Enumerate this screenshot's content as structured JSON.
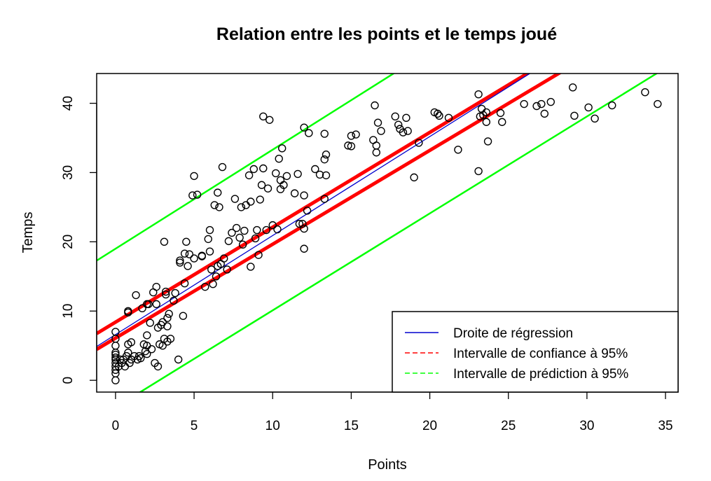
{
  "chart_data": {
    "type": "scatter",
    "title": "Relation entre les points et le temps joué",
    "xlabel": "Points",
    "ylabel": "Temps",
    "xlim": [
      -1.2,
      35.8
    ],
    "ylim": [
      -1.7,
      44.3
    ],
    "x_ticks": [
      0,
      5,
      10,
      15,
      20,
      25,
      30,
      35
    ],
    "y_ticks": [
      0,
      10,
      20,
      30,
      40
    ],
    "grid": false,
    "legend_position": "bottom-right",
    "legend": [
      {
        "label": "Droite de régression",
        "color": "#0000cd",
        "style": "solid"
      },
      {
        "label": "Intervalle de confiance à 95%",
        "color": "#ff0000",
        "style": "dashed"
      },
      {
        "label": "Intervalle de prédiction à 95%",
        "color": "#00ff00",
        "style": "dashed"
      }
    ],
    "regression": {
      "intercept": 6.6,
      "slope": 1.43,
      "color": "#0000cd"
    },
    "confidence_band": {
      "lower": {
        "intercept": 6.1,
        "slope": 1.355
      },
      "upper": {
        "intercept": 8.4,
        "slope": 1.37
      },
      "color": "#ff0000"
    },
    "prediction_band": {
      "lower": {
        "intercept": -3.9,
        "slope": 1.4
      },
      "upper": {
        "intercept": 19.0,
        "slope": 1.43
      },
      "color": "#00ff00"
    },
    "points": [
      [
        0,
        0
      ],
      [
        0,
        1
      ],
      [
        0,
        1.5
      ],
      [
        0,
        2
      ],
      [
        0,
        2.5
      ],
      [
        0,
        3
      ],
      [
        0,
        3.3
      ],
      [
        0,
        3.7
      ],
      [
        0,
        4
      ],
      [
        0,
        5
      ],
      [
        0,
        6
      ],
      [
        0,
        7
      ],
      [
        0.2,
        2
      ],
      [
        0.3,
        3
      ],
      [
        0.4,
        2.5
      ],
      [
        0.5,
        3
      ],
      [
        0.6,
        2
      ],
      [
        0.7,
        3.5
      ],
      [
        0.8,
        4
      ],
      [
        0.9,
        2.5
      ],
      [
        0.8,
        10
      ],
      [
        0.8,
        9.8
      ],
      [
        0.8,
        5.2
      ],
      [
        1,
        5.5
      ],
      [
        1,
        3
      ],
      [
        1.2,
        3.5
      ],
      [
        1.3,
        12.3
      ],
      [
        1.4,
        3
      ],
      [
        1.5,
        3.5
      ],
      [
        1.6,
        3.2
      ],
      [
        1.7,
        10.4
      ],
      [
        1.8,
        5.2
      ],
      [
        1.9,
        4.2
      ],
      [
        2,
        5
      ],
      [
        2,
        11
      ],
      [
        2,
        6.5
      ],
      [
        2,
        3.8
      ],
      [
        2.1,
        11
      ],
      [
        2.2,
        8.3
      ],
      [
        2.3,
        4.5
      ],
      [
        2.4,
        12.7
      ],
      [
        2.5,
        2.5
      ],
      [
        2.6,
        13.5
      ],
      [
        2.6,
        11
      ],
      [
        2.7,
        2
      ],
      [
        2.7,
        7.6
      ],
      [
        2.8,
        5.2
      ],
      [
        2.9,
        8
      ],
      [
        3,
        8.4
      ],
      [
        3,
        5
      ],
      [
        3.1,
        20
      ],
      [
        3.1,
        6
      ],
      [
        3.2,
        12.4
      ],
      [
        3.2,
        12.8
      ],
      [
        3.3,
        7.8
      ],
      [
        3.3,
        5.6
      ],
      [
        3.3,
        9
      ],
      [
        3.4,
        9.6
      ],
      [
        3.5,
        6
      ],
      [
        3.7,
        11.5
      ],
      [
        3.8,
        12.6
      ],
      [
        4,
        3
      ],
      [
        4.1,
        17.3
      ],
      [
        4.1,
        17
      ],
      [
        4.3,
        9.3
      ],
      [
        4.4,
        14
      ],
      [
        4.4,
        18.3
      ],
      [
        4.5,
        20
      ],
      [
        4.6,
        16.5
      ],
      [
        4.7,
        18.2
      ],
      [
        4.9,
        26.7
      ],
      [
        5,
        29.5
      ],
      [
        5,
        17.6
      ],
      [
        5.2,
        26.8
      ],
      [
        5.5,
        18
      ],
      [
        5.7,
        13.5
      ],
      [
        5.9,
        20.4
      ],
      [
        6,
        21.7
      ],
      [
        6,
        18.6
      ],
      [
        6.1,
        16
      ],
      [
        6.2,
        13.9
      ],
      [
        6.3,
        25.3
      ],
      [
        6.4,
        15
      ],
      [
        6.5,
        27.1
      ],
      [
        6.5,
        16.5
      ],
      [
        6.6,
        25
      ],
      [
        6.7,
        16.8
      ],
      [
        6.8,
        30.8
      ],
      [
        6.9,
        17.6
      ],
      [
        7.1,
        16
      ],
      [
        7.2,
        20.1
      ],
      [
        7.4,
        21.3
      ],
      [
        7.6,
        26.2
      ],
      [
        7.7,
        22
      ],
      [
        7.9,
        20.6
      ],
      [
        8,
        25
      ],
      [
        8.1,
        19.6
      ],
      [
        8.2,
        21.6
      ],
      [
        8.3,
        25.3
      ],
      [
        8.5,
        29.6
      ],
      [
        8.6,
        25.8
      ],
      [
        8.6,
        16.4
      ],
      [
        8.8,
        30.5
      ],
      [
        8.9,
        20.5
      ],
      [
        9,
        21.7
      ],
      [
        9.1,
        18.1
      ],
      [
        9.2,
        26.1
      ],
      [
        9.3,
        28.2
      ],
      [
        9.4,
        38.1
      ],
      [
        9.4,
        30.6
      ],
      [
        9.6,
        21.7
      ],
      [
        9.7,
        27.7
      ],
      [
        9.8,
        37.6
      ],
      [
        10,
        22.4
      ],
      [
        10.2,
        29.9
      ],
      [
        10.3,
        21.8
      ],
      [
        10.4,
        32
      ],
      [
        10.5,
        27.6
      ],
      [
        10.5,
        28.9
      ],
      [
        10.6,
        33.5
      ],
      [
        10.7,
        28.2
      ],
      [
        10.9,
        29.5
      ],
      [
        11.4,
        27
      ],
      [
        11.6,
        29.8
      ],
      [
        11.7,
        22.6
      ],
      [
        11.9,
        22.6
      ],
      [
        12,
        19
      ],
      [
        12,
        36.5
      ],
      [
        12,
        26.7
      ],
      [
        12,
        21.9
      ],
      [
        12.2,
        24.5
      ],
      [
        12.3,
        35.7
      ],
      [
        12.7,
        30.5
      ],
      [
        13,
        29.7
      ],
      [
        13.3,
        35.6
      ],
      [
        13.3,
        31.9
      ],
      [
        13.4,
        32.6
      ],
      [
        13.4,
        29.6
      ],
      [
        13.3,
        26.2
      ],
      [
        14.8,
        33.9
      ],
      [
        15,
        35.3
      ],
      [
        15,
        33.8
      ],
      [
        15.3,
        35.5
      ],
      [
        16.4,
        34.7
      ],
      [
        16.5,
        39.7
      ],
      [
        16.6,
        33.9
      ],
      [
        16.6,
        32.9
      ],
      [
        16.7,
        37.2
      ],
      [
        16.9,
        36
      ],
      [
        17.8,
        38.1
      ],
      [
        18,
        36.9
      ],
      [
        18.1,
        36.3
      ],
      [
        18.3,
        35.8
      ],
      [
        18.5,
        37.9
      ],
      [
        18.6,
        36
      ],
      [
        19,
        29.3
      ],
      [
        19.3,
        34.3
      ],
      [
        20.3,
        38.7
      ],
      [
        20.6,
        38.2
      ],
      [
        21.8,
        33.3
      ],
      [
        23.1,
        30.2
      ],
      [
        23.1,
        41.3
      ],
      [
        23.3,
        39.2
      ],
      [
        23.4,
        38.3
      ],
      [
        23.6,
        38.7
      ],
      [
        23.6,
        37.3
      ],
      [
        23.7,
        34.5
      ],
      [
        24.5,
        38.6
      ],
      [
        24.6,
        37.3
      ],
      [
        26,
        39.9
      ],
      [
        26.8,
        39.6
      ],
      [
        27.1,
        39.9
      ],
      [
        27.3,
        38.5
      ],
      [
        27.7,
        40.2
      ],
      [
        29.1,
        42.3
      ],
      [
        29.2,
        38.2
      ],
      [
        30.1,
        39.4
      ],
      [
        30.5,
        37.8
      ],
      [
        31.6,
        39.7
      ],
      [
        33.7,
        41.6
      ],
      [
        34.5,
        39.9
      ],
      [
        23.2,
        38.1
      ],
      [
        21.2,
        37.9
      ],
      [
        20.5,
        38.5
      ],
      [
        5.5,
        17.9
      ]
    ]
  }
}
